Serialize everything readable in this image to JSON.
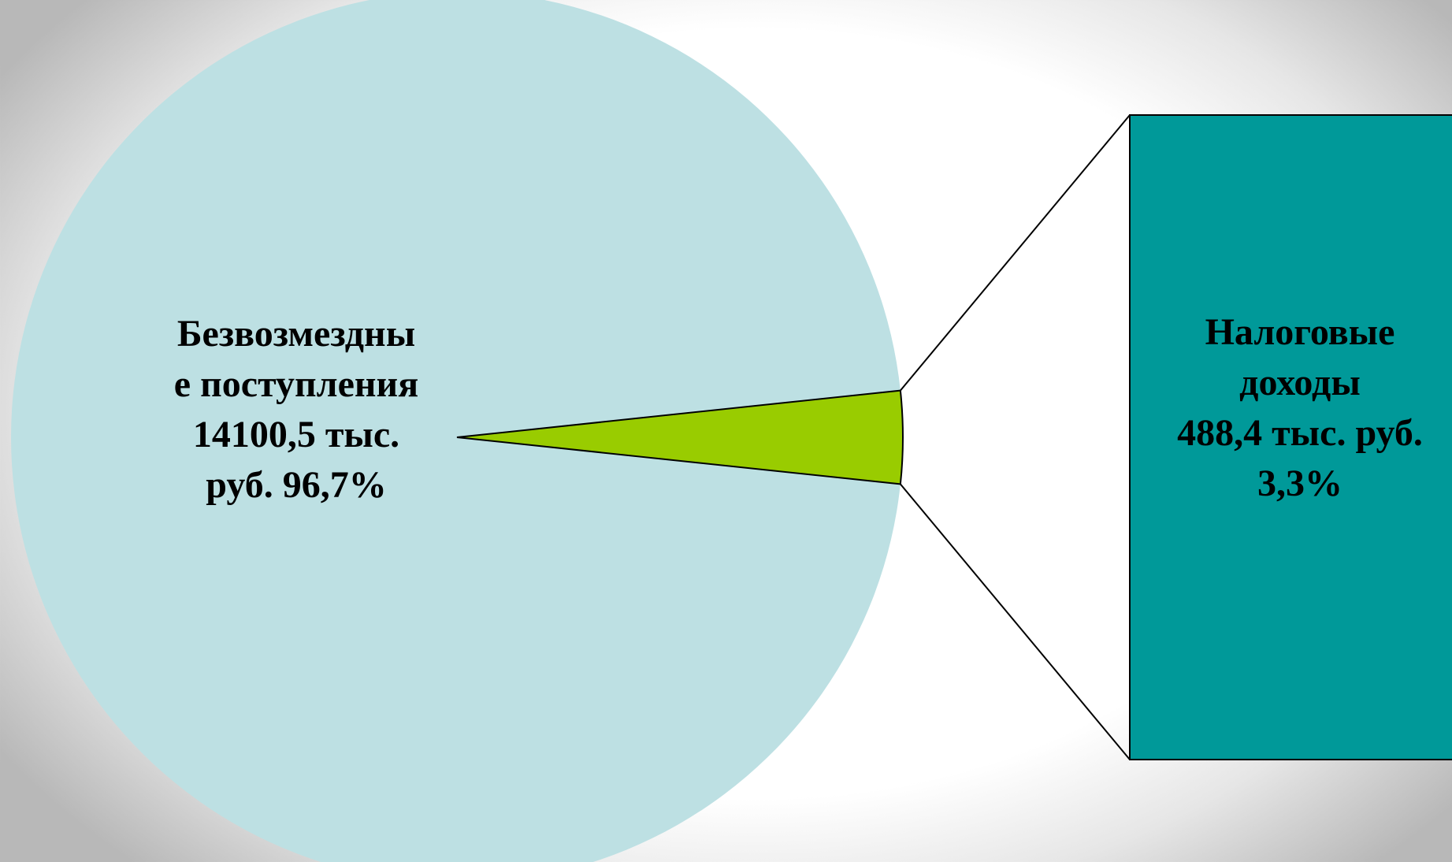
{
  "chart_data": {
    "type": "pie",
    "subtype": "bar-of-pie",
    "title": "",
    "slices": [
      {
        "label_lines": [
          "Безвозмездны",
          "е поступления",
          "14100,5 тыс.",
          "руб. 96,7%"
        ],
        "value": 14100.5,
        "unit": "тыс. руб.",
        "percent": 96.7,
        "color": "#bde0e3"
      },
      {
        "label_lines": [
          "Налоговые",
          "доходы",
          "488,4 тыс. руб.",
          "3,3%"
        ],
        "value": 488.4,
        "unit": "тыс. руб.",
        "percent": 3.3,
        "color": "#99cc00",
        "detail_color": "#009999"
      }
    ],
    "legend": "none"
  }
}
